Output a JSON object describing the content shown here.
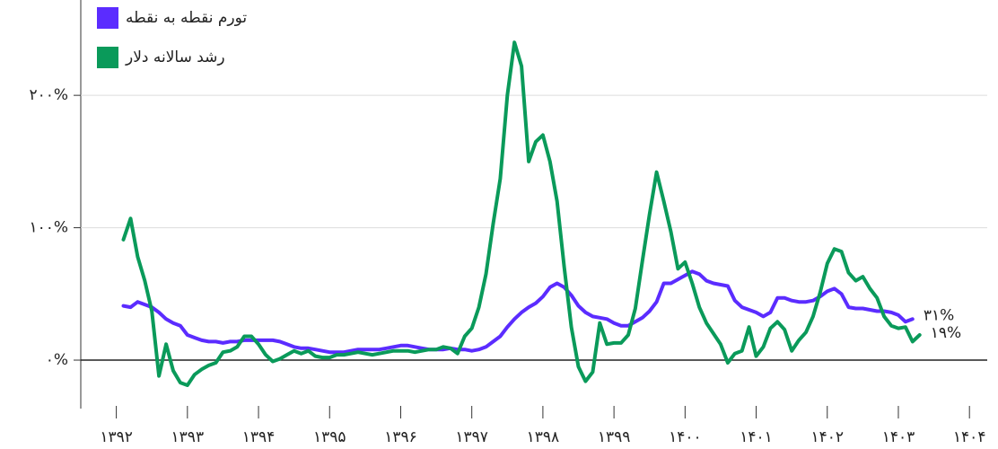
{
  "chart_data": {
    "type": "line",
    "legend": "top-left",
    "grid": true,
    "xlim": [
      1391.5,
      1404.25
    ],
    "ylim": [
      -40,
      272
    ],
    "xticks": [
      {
        "value": 1392,
        "label": "۱۳۹۲"
      },
      {
        "value": 1393,
        "label": "۱۳۹۳"
      },
      {
        "value": 1394,
        "label": "۱۳۹۴"
      },
      {
        "value": 1395,
        "label": "۱۳۹۵"
      },
      {
        "value": 1396,
        "label": "۱۳۹۶"
      },
      {
        "value": 1397,
        "label": "۱۳۹۷"
      },
      {
        "value": 1398,
        "label": "۱۳۹۸"
      },
      {
        "value": 1399,
        "label": "۱۳۹۹"
      },
      {
        "value": 1400,
        "label": "۱۴۰۰"
      },
      {
        "value": 1401,
        "label": "۱۴۰۱"
      },
      {
        "value": 1402,
        "label": "۱۴۰۲"
      },
      {
        "value": 1403,
        "label": "۱۴۰۳"
      },
      {
        "value": 1404,
        "label": "۱۴۰۴"
      }
    ],
    "yticks": [
      {
        "value": 0,
        "label": "۰%"
      },
      {
        "value": 100,
        "label": "۱۰۰%"
      },
      {
        "value": 200,
        "label": "۲۰۰%"
      }
    ],
    "x": [
      1392.1,
      1392.2,
      1392.3,
      1392.4,
      1392.5,
      1392.6,
      1392.7,
      1392.8,
      1392.9,
      1393.0,
      1393.1,
      1393.2,
      1393.3,
      1393.4,
      1393.5,
      1393.6,
      1393.7,
      1393.8,
      1393.9,
      1394.0,
      1394.1,
      1394.2,
      1394.3,
      1394.4,
      1394.5,
      1394.6,
      1394.7,
      1394.8,
      1394.9,
      1395.0,
      1395.1,
      1395.2,
      1395.3,
      1395.4,
      1395.5,
      1395.6,
      1395.7,
      1395.8,
      1395.9,
      1396.0,
      1396.1,
      1396.2,
      1396.3,
      1396.4,
      1396.5,
      1396.6,
      1396.7,
      1396.8,
      1396.9,
      1397.0,
      1397.1,
      1397.2,
      1397.3,
      1397.4,
      1397.5,
      1397.6,
      1397.7,
      1397.8,
      1397.9,
      1398.0,
      1398.1,
      1398.2,
      1398.3,
      1398.4,
      1398.5,
      1398.6,
      1398.7,
      1398.8,
      1398.9,
      1399.0,
      1399.1,
      1399.2,
      1399.3,
      1399.4,
      1399.5,
      1399.6,
      1399.7,
      1399.8,
      1399.9,
      1400.0,
      1400.1,
      1400.2,
      1400.3,
      1400.4,
      1400.5,
      1400.6,
      1400.7,
      1400.8,
      1400.9,
      1401.0,
      1401.1,
      1401.2,
      1401.3,
      1401.4,
      1401.5,
      1401.6,
      1401.7,
      1401.8,
      1401.9,
      1402.0,
      1402.1,
      1402.2,
      1402.3,
      1402.4,
      1402.5,
      1402.6,
      1402.7,
      1402.8,
      1402.9,
      1403.0,
      1403.1,
      1403.2,
      1403.3
    ],
    "series": [
      {
        "name": "تورم نقطه به نقطه",
        "color": "#5b2cff",
        "end_label": "۳۱%",
        "values": [
          41,
          40,
          44,
          42,
          40,
          36,
          31,
          28,
          26,
          19,
          17,
          15,
          14,
          14,
          13,
          14,
          14,
          15,
          15,
          15,
          15,
          15,
          14,
          12,
          10,
          9,
          9,
          8,
          7,
          6,
          6,
          6,
          7,
          8,
          8,
          8,
          8,
          9,
          10,
          11,
          11,
          10,
          9,
          8,
          8,
          8,
          9,
          8,
          8,
          7,
          8,
          10,
          14,
          18,
          25,
          31,
          36,
          40,
          43,
          48,
          55,
          58,
          55,
          49,
          41,
          36,
          33,
          32,
          31,
          28,
          26,
          26,
          29,
          32,
          37,
          44,
          58,
          58,
          61,
          64,
          67,
          65,
          60,
          58,
          57,
          56,
          45,
          40,
          38,
          36,
          33,
          36,
          47,
          47,
          45,
          44,
          44,
          45,
          48,
          52,
          54,
          50,
          40,
          39,
          39,
          38,
          37,
          37,
          36,
          34,
          29,
          31,
          null
        ]
      },
      {
        "name": "رشد سالانه دلار",
        "color": "#0a9a5a",
        "end_label": "۱۹%",
        "values": [
          91,
          107,
          78,
          60,
          37,
          -12,
          12,
          -8,
          -17,
          -19,
          -11,
          -7,
          -4,
          -2,
          6,
          7,
          10,
          18,
          18,
          12,
          4,
          -1,
          1,
          4,
          7,
          5,
          7,
          3,
          2,
          2,
          4,
          4,
          5,
          6,
          5,
          4,
          5,
          6,
          7,
          7,
          7,
          6,
          7,
          8,
          8,
          10,
          9,
          5,
          18,
          24,
          40,
          65,
          103,
          137,
          200,
          240,
          222,
          150,
          165,
          170,
          150,
          120,
          70,
          25,
          -5,
          -16,
          -9,
          28,
          12,
          13,
          13,
          19,
          39,
          75,
          110,
          142,
          120,
          97,
          69,
          74,
          58,
          40,
          28,
          20,
          12,
          -2,
          5,
          7,
          25,
          3,
          10,
          24,
          29,
          23,
          7,
          15,
          21,
          33,
          51,
          73,
          84,
          82,
          66,
          60,
          63,
          54,
          47,
          33,
          26,
          24,
          25,
          14,
          19
        ]
      }
    ]
  }
}
